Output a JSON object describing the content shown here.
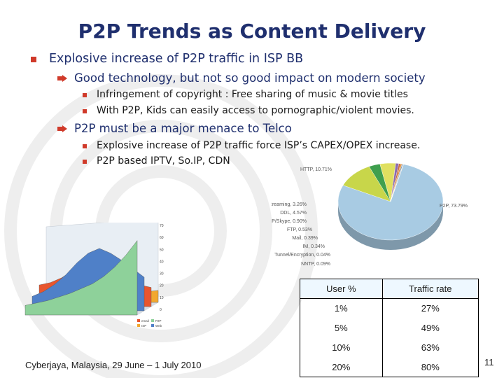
{
  "slide": {
    "title": "P2P Trends as Content Delivery",
    "bullets": {
      "l1": "Explosive increase of P2P traffic in ISP BB",
      "l2a": "Good technology, but not so good impact on modern society",
      "l3a": "Infringement of copyright : Free sharing of music & movie titles",
      "l3b": "With P2P, Kids can easily access to pornographic/violent movies.",
      "l2b": "P2P must be a major menace to Telco",
      "l3c": "Explosive increase of P2P traffic force ISP’s CAPEX/OPEX increase.",
      "l3d": "P2P based IPTV, So.IP, CDN"
    },
    "footer": "Cyberjaya, Malaysia, 29 June – 1 July 2010",
    "page_number": "11"
  },
  "table": {
    "headers": [
      "User %",
      "Traffic rate"
    ],
    "rows": [
      [
        "1%",
        "27%"
      ],
      [
        "5%",
        "49%"
      ],
      [
        "10%",
        "63%"
      ],
      [
        "20%",
        "80%"
      ]
    ]
  },
  "colors": {
    "title": "#1f2f6e",
    "bullet": "#d03a2a",
    "p2p": "#a8cbe3",
    "http": "#c8d64a"
  },
  "chart_data": [
    {
      "type": "area",
      "title": "",
      "yticks": [
        "70",
        "60",
        "50",
        "40",
        "30",
        "20",
        "10",
        "0"
      ],
      "ylim": [
        0,
        70
      ],
      "legend": [
        "email",
        "P2P",
        "ISP",
        "Web"
      ],
      "series": [
        {
          "name": "P2P",
          "values": [
            8,
            10,
            12,
            15,
            18,
            22,
            26,
            32,
            40,
            50,
            62
          ]
        },
        {
          "name": "Web",
          "values": [
            12,
            16,
            22,
            30,
            40,
            48,
            52,
            48,
            42,
            35,
            28
          ]
        },
        {
          "name": "email",
          "values": [
            18,
            20,
            24,
            30,
            34,
            30,
            26,
            22,
            20,
            18,
            16
          ]
        },
        {
          "name": "ISP",
          "values": [
            6,
            6,
            7,
            7,
            8,
            8,
            8,
            9,
            9,
            9,
            10
          ]
        }
      ]
    },
    {
      "type": "pie",
      "title": "",
      "slices": [
        {
          "label": "P2P, 73.79%",
          "value": 73.79,
          "color": "#a8cbe3"
        },
        {
          "label": "HTTP, 10.71%",
          "value": 10.71,
          "color": "#c8d64a"
        },
        {
          "label": "Streaming, 3.26%",
          "value": 3.26,
          "color": "#3f9f4e"
        },
        {
          "label": "DDL, 4.57%",
          "value": 4.57,
          "color": "#e0e060"
        },
        {
          "label": "VoIP/Skype, 0.90%",
          "value": 0.9,
          "color": "#8a6bb0"
        },
        {
          "label": "FTP, 0.53%",
          "value": 0.53,
          "color": "#c86a3c"
        },
        {
          "label": "Mail, 0.39%",
          "value": 0.39,
          "color": "#e28a2a"
        },
        {
          "label": "IM, 0.34%",
          "value": 0.34,
          "color": "#7fa0c0"
        },
        {
          "label": "Tunnel/Encryption, 0.04%",
          "value": 0.04,
          "color": "#b0b0b0"
        },
        {
          "label": "NNTP, 0.09%",
          "value": 0.09,
          "color": "#d0b080"
        }
      ]
    }
  ]
}
